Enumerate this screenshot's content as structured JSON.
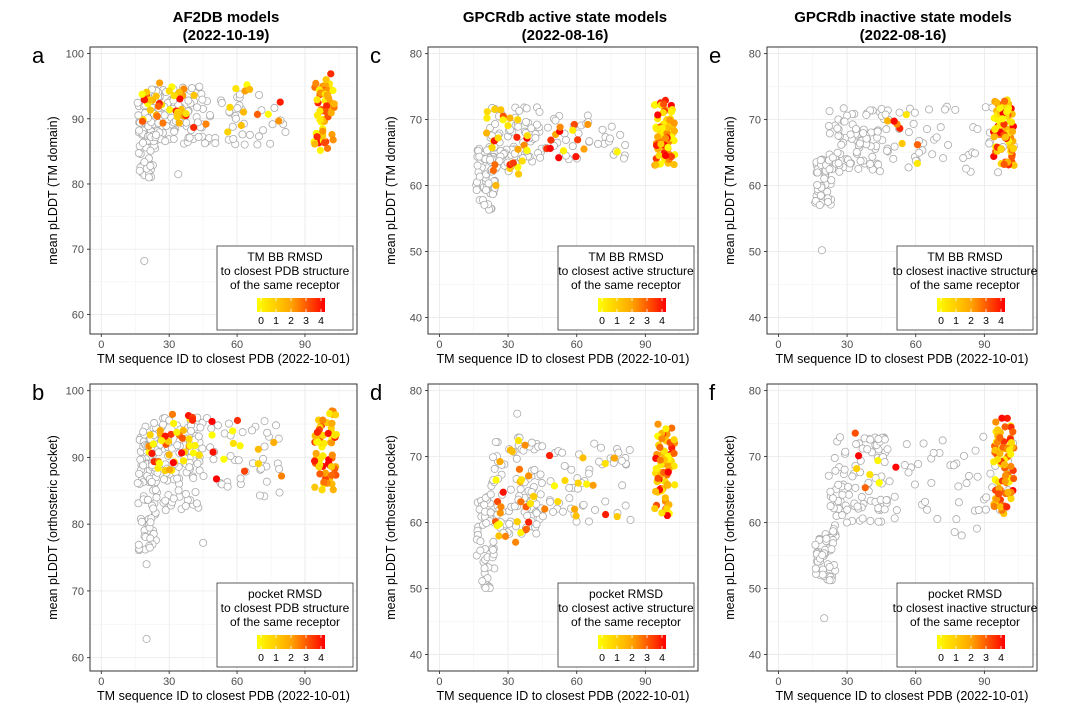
{
  "column_titles": [
    {
      "line1": "AF2DB models",
      "line2": "(2022-10-19)"
    },
    {
      "line1": "GPCRdb active state models",
      "line2": "(2022-08-16)"
    },
    {
      "line1": "GPCRdb inactive state models",
      "line2": "(2022-08-16)"
    }
  ],
  "colors": {
    "grey_marker": "#aaaaaa",
    "scale_low": "#ffff00",
    "scale_mid": "#ffa500",
    "scale_high": "#ff0000",
    "grid": "#ebebeb"
  },
  "chart_data": [
    {
      "panel": "a",
      "type": "scatter",
      "xlabel": "TM sequence ID to closest PDB (2022-10-01)",
      "ylabel": "mean pLDDT (TM domain)",
      "xlim": [
        -5,
        113
      ],
      "ylim": [
        57,
        101
      ],
      "xticks": [
        0,
        30,
        60,
        90
      ],
      "yticks": [
        60,
        70,
        80,
        90,
        100
      ],
      "grey_seed": 11,
      "grey_count": 200,
      "grey_clusters": [
        {
          "n": 70,
          "xmin": 16,
          "xmax": 24,
          "ymin": 81,
          "ymax": 94
        },
        {
          "n": 90,
          "xmin": 22,
          "xmax": 45,
          "ymin": 86,
          "ymax": 95
        },
        {
          "n": 40,
          "xmin": 44,
          "xmax": 85,
          "ymin": 86,
          "ymax": 94
        }
      ],
      "grey_extra": [
        {
          "x": 19,
          "y": 68.2
        },
        {
          "x": 34,
          "y": 81.5
        }
      ],
      "colored_seed": 21,
      "colored_count": 110,
      "colored_clusters": [
        {
          "n": 35,
          "xmin": 18,
          "xmax": 38,
          "ymin": 89,
          "ymax": 96
        },
        {
          "n": 15,
          "xmin": 38,
          "xmax": 80,
          "ymin": 87,
          "ymax": 96
        },
        {
          "n": 60,
          "xmin": 94,
          "xmax": 103,
          "ymin": 85,
          "ymax": 97
        }
      ],
      "legend": {
        "line1": "TM BB RMSD",
        "line2": "to closest PDB structure",
        "line3": "of the same receptor",
        "ticks": [
          "0",
          "1",
          "2",
          "3",
          "4"
        ]
      }
    },
    {
      "panel": "c",
      "type": "scatter",
      "xlabel": "TM sequence ID to closest PDB (2022-10-01)",
      "ylabel": "mean pLDDT (TM domain)",
      "xlim": [
        -5,
        113
      ],
      "ylim": [
        37.5,
        81
      ],
      "xticks": [
        0,
        30,
        60,
        90
      ],
      "yticks": [
        40,
        50,
        60,
        70,
        80
      ],
      "grey_seed": 31,
      "grey_count": 170,
      "grey_clusters": [
        {
          "n": 55,
          "xmin": 16,
          "xmax": 25,
          "ymin": 56,
          "ymax": 66
        },
        {
          "n": 80,
          "xmin": 22,
          "xmax": 45,
          "ymin": 62,
          "ymax": 72
        },
        {
          "n": 35,
          "xmin": 45,
          "xmax": 85,
          "ymin": 64,
          "ymax": 71
        }
      ],
      "grey_extra": [],
      "colored_seed": 41,
      "colored_count": 115,
      "colored_clusters": [
        {
          "n": 30,
          "xmin": 20,
          "xmax": 40,
          "ymin": 60,
          "ymax": 72
        },
        {
          "n": 15,
          "xmin": 40,
          "xmax": 78,
          "ymin": 64,
          "ymax": 70
        },
        {
          "n": 70,
          "xmin": 94,
          "xmax": 103,
          "ymin": 63,
          "ymax": 73
        }
      ],
      "legend": {
        "line1": "TM BB RMSD",
        "line2": "to closest active structure",
        "line3": "of the same receptor",
        "ticks": [
          "0",
          "1",
          "2",
          "3",
          "4"
        ]
      }
    },
    {
      "panel": "e",
      "type": "scatter",
      "xlabel": "TM sequence ID to closest PDB (2022-10-01)",
      "ylabel": "mean pLDDT (TM domain)",
      "xlim": [
        -5,
        113
      ],
      "ylim": [
        37.5,
        81
      ],
      "xticks": [
        0,
        30,
        60,
        90
      ],
      "yticks": [
        40,
        50,
        60,
        70,
        80
      ],
      "grey_seed": 51,
      "grey_count": 190,
      "grey_clusters": [
        {
          "n": 50,
          "xmin": 16,
          "xmax": 24,
          "ymin": 57,
          "ymax": 64
        },
        {
          "n": 90,
          "xmin": 22,
          "xmax": 48,
          "ymin": 62,
          "ymax": 72
        },
        {
          "n": 50,
          "xmin": 45,
          "xmax": 103,
          "ymin": 62,
          "ymax": 72
        }
      ],
      "grey_extra": [
        {
          "x": 19,
          "y": 50.2
        }
      ],
      "colored_seed": 61,
      "colored_count": 85,
      "colored_clusters": [
        {
          "n": 8,
          "xmin": 30,
          "xmax": 72,
          "ymin": 63,
          "ymax": 71
        },
        {
          "n": 77,
          "xmin": 94,
          "xmax": 103,
          "ymin": 63,
          "ymax": 73
        }
      ],
      "legend": {
        "line1": "TM BB RMSD",
        "line2": "to closest inactive structure",
        "line3": "of the same receptor",
        "ticks": [
          "0",
          "1",
          "2",
          "3",
          "4"
        ]
      }
    },
    {
      "panel": "b",
      "type": "scatter",
      "xlabel": "TM sequence ID to closest PDB (2022-10-01)",
      "ylabel": "mean pLDDT (orthosteric pocket)",
      "xlim": [
        -5,
        113
      ],
      "ylim": [
        58,
        101
      ],
      "xticks": [
        0,
        30,
        60,
        90
      ],
      "yticks": [
        60,
        70,
        80,
        90,
        100
      ],
      "grey_seed": 71,
      "grey_count": 230,
      "grey_clusters": [
        {
          "n": 90,
          "xmin": 16,
          "xmax": 25,
          "ymin": 76,
          "ymax": 95
        },
        {
          "n": 100,
          "xmin": 22,
          "xmax": 45,
          "ymin": 82,
          "ymax": 96
        },
        {
          "n": 40,
          "xmin": 44,
          "xmax": 80,
          "ymin": 84,
          "ymax": 96
        }
      ],
      "grey_extra": [
        {
          "x": 20,
          "y": 62.8
        },
        {
          "x": 20,
          "y": 74
        },
        {
          "x": 45,
          "y": 77.2
        }
      ],
      "colored_seed": 81,
      "colored_count": 120,
      "colored_clusters": [
        {
          "n": 35,
          "xmin": 20,
          "xmax": 40,
          "ymin": 88,
          "ymax": 97
        },
        {
          "n": 20,
          "xmin": 38,
          "xmax": 80,
          "ymin": 86,
          "ymax": 96
        },
        {
          "n": 65,
          "xmin": 94,
          "xmax": 104,
          "ymin": 85,
          "ymax": 97
        }
      ],
      "legend": {
        "line1": "pocket RMSD",
        "line2": "to closest PDB structure",
        "line3": "of the same receptor",
        "ticks": [
          "0",
          "1",
          "2",
          "3",
          "4"
        ]
      }
    },
    {
      "panel": "d",
      "type": "scatter",
      "xlabel": "TM sequence ID to closest PDB (2022-10-01)",
      "ylabel": "mean pLDDT (orthosteric pocket)",
      "xlim": [
        -5,
        113
      ],
      "ylim": [
        37.5,
        81
      ],
      "xticks": [
        0,
        30,
        60,
        90
      ],
      "yticks": [
        40,
        50,
        60,
        70,
        80
      ],
      "grey_seed": 91,
      "grey_count": 190,
      "grey_clusters": [
        {
          "n": 50,
          "xmin": 16,
          "xmax": 24,
          "ymin": 50,
          "ymax": 64
        },
        {
          "n": 90,
          "xmin": 22,
          "xmax": 45,
          "ymin": 58,
          "ymax": 73
        },
        {
          "n": 50,
          "xmin": 40,
          "xmax": 85,
          "ymin": 60,
          "ymax": 72
        }
      ],
      "grey_extra": [
        {
          "x": 34,
          "y": 76.5
        }
      ],
      "colored_seed": 101,
      "colored_count": 115,
      "colored_clusters": [
        {
          "n": 30,
          "xmin": 24,
          "xmax": 42,
          "ymin": 57,
          "ymax": 73
        },
        {
          "n": 15,
          "xmin": 40,
          "xmax": 78,
          "ymin": 60,
          "ymax": 72
        },
        {
          "n": 70,
          "xmin": 94,
          "xmax": 103,
          "ymin": 61,
          "ymax": 75
        }
      ],
      "legend": {
        "line1": "pocket RMSD",
        "line2": "to closest active structure",
        "line3": "of the same receptor",
        "ticks": [
          "0",
          "1",
          "2",
          "3",
          "4"
        ]
      }
    },
    {
      "panel": "f",
      "type": "scatter",
      "xlabel": "TM sequence ID to closest PDB (2022-10-01)",
      "ylabel": "mean pLDDT (orthosteric pocket)",
      "xlim": [
        -5,
        113
      ],
      "ylim": [
        37.5,
        81
      ],
      "xticks": [
        0,
        30,
        60,
        90
      ],
      "yticks": [
        40,
        50,
        60,
        70,
        80
      ],
      "grey_seed": 111,
      "grey_count": 200,
      "grey_clusters": [
        {
          "n": 55,
          "xmin": 16,
          "xmax": 25,
          "ymin": 51,
          "ymax": 60
        },
        {
          "n": 90,
          "xmin": 22,
          "xmax": 48,
          "ymin": 60,
          "ymax": 73
        },
        {
          "n": 55,
          "xmin": 45,
          "xmax": 103,
          "ymin": 58,
          "ymax": 73
        }
      ],
      "grey_extra": [
        {
          "x": 20,
          "y": 45.5
        }
      ],
      "colored_seed": 121,
      "colored_count": 90,
      "colored_clusters": [
        {
          "n": 8,
          "xmin": 32,
          "xmax": 72,
          "ymin": 63,
          "ymax": 74
        },
        {
          "n": 82,
          "xmin": 94,
          "xmax": 103,
          "ymin": 61,
          "ymax": 76
        }
      ],
      "legend": {
        "line1": "pocket RMSD",
        "line2": "to closest inactive structure",
        "line3": "of the same receptor",
        "ticks": [
          "0",
          "1",
          "2",
          "3",
          "4"
        ]
      }
    }
  ]
}
